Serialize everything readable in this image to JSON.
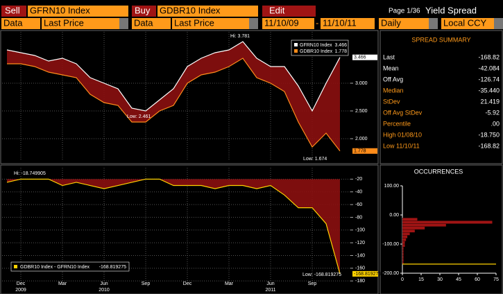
{
  "header": {
    "sell": "Sell",
    "sell_ticker": "GFRN10 Index",
    "buy": "Buy",
    "buy_ticker": "GDBR10 Index",
    "edit": "Edit",
    "page": "Page 1/36",
    "view": "Yield Spread"
  },
  "controls": {
    "data1": "Data",
    "field1": "Last Price",
    "data2": "Data",
    "field2": "Last Price",
    "start": "11/10/09",
    "dash": "-",
    "end": "11/10/11",
    "period": "Daily",
    "currency": "Local CCY"
  },
  "summary": {
    "title": "SPREAD SUMMARY",
    "rows": [
      [
        "Last",
        "-168.82"
      ],
      [
        "Mean",
        "-42.084"
      ],
      [
        "Off Avg",
        "-126.74"
      ],
      [
        "Median",
        "-35.440"
      ],
      [
        "StDev",
        "21.419"
      ],
      [
        "Off Avg StDev",
        "-5.92"
      ],
      [
        "Percentile",
        ".00"
      ],
      [
        "High 01/08/10",
        "-18.750"
      ],
      [
        "Low 11/10/11",
        "-168.82"
      ]
    ]
  },
  "chart_data": [
    {
      "type": "line",
      "ylim": [
        1.6,
        3.95
      ],
      "yticks": [
        {
          "value": 2,
          "label": "2.000"
        },
        {
          "value": 2.5,
          "label": "2.500"
        },
        {
          "value": 3,
          "label": "3.000"
        }
      ],
      "grid": true,
      "annotations": [
        "Hi: 3.781",
        "Low: 2.461",
        "Low: 1.674"
      ],
      "series": [
        {
          "name": "GFRN10 Index",
          "color": "#ffffff",
          "value_label": "3.466",
          "values": [
            3.6,
            3.55,
            3.5,
            3.4,
            3.45,
            3.35,
            3.1,
            3.0,
            2.9,
            2.55,
            2.5,
            2.7,
            2.9,
            3.3,
            3.45,
            3.55,
            3.6,
            3.75,
            3.45,
            3.3,
            3.3,
            2.95,
            2.5,
            3.0,
            3.466
          ]
        },
        {
          "name": "GDBR10 Index",
          "color": "#ff8c1a",
          "value_label": "1.778",
          "values": [
            3.35,
            3.35,
            3.3,
            3.2,
            3.15,
            3.1,
            2.8,
            2.65,
            2.6,
            2.3,
            2.3,
            2.5,
            2.6,
            3.0,
            3.15,
            3.2,
            3.3,
            3.45,
            3.1,
            3.0,
            2.85,
            2.3,
            1.85,
            2.1,
            1.778
          ]
        }
      ]
    },
    {
      "type": "line",
      "ylim": [
        -182,
        0
      ],
      "yticks": [
        -20,
        -40,
        -60,
        -80,
        -100,
        -120,
        -140,
        -160,
        -180
      ],
      "grid": true,
      "categories": [
        null,
        "Dec",
        null,
        null,
        "Mar",
        null,
        null,
        "Jun",
        null,
        null,
        "Sep",
        null,
        null,
        "Dec",
        null,
        null,
        "Mar",
        null,
        null,
        "Jun",
        null,
        null,
        "Sep",
        null,
        null
      ],
      "category_years": [
        null,
        "2009",
        null,
        null,
        null,
        null,
        null,
        "2010",
        null,
        null,
        null,
        null,
        null,
        null,
        null,
        null,
        null,
        null,
        null,
        "2011",
        null,
        null,
        null,
        null,
        null
      ],
      "annotations": [
        "Hi: -18.749905",
        "Low: -168.819275"
      ],
      "series": [
        {
          "name": "GDBR10 Index - GFRN10 Index",
          "color": "#ffd200",
          "value_label": "-168.819275",
          "values": [
            -25,
            -20,
            -20,
            -20,
            -30,
            -25,
            -30,
            -35,
            -30,
            -25,
            -20,
            -20,
            -30,
            -30,
            -30,
            -35,
            -30,
            -30,
            -35,
            -30,
            -45,
            -65,
            -65,
            -90,
            -168.82
          ]
        }
      ]
    },
    {
      "type": "histogram",
      "title": "OCCURRENCES",
      "color": "#a01414",
      "ylim": [
        -200,
        100
      ],
      "yticks": [
        {
          "value": 100,
          "label": "100.00"
        },
        {
          "value": 0,
          "label": "0.00"
        },
        {
          "value": -100,
          "label": "-100.00"
        },
        {
          "value": -200,
          "label": "-200.00"
        }
      ],
      "xlim": [
        0,
        75
      ],
      "xticks": [
        0,
        15,
        30,
        45,
        60,
        75
      ],
      "bins": [
        -170,
        -160,
        -150,
        -140,
        -130,
        -120,
        -110,
        -100,
        -90,
        -80,
        -70,
        -60,
        -50,
        -40,
        -30,
        -20,
        -10
      ],
      "counts": [
        1,
        1,
        1,
        1,
        1,
        1,
        2,
        2,
        3,
        4,
        6,
        10,
        18,
        35,
        72,
        12
      ]
    }
  ]
}
